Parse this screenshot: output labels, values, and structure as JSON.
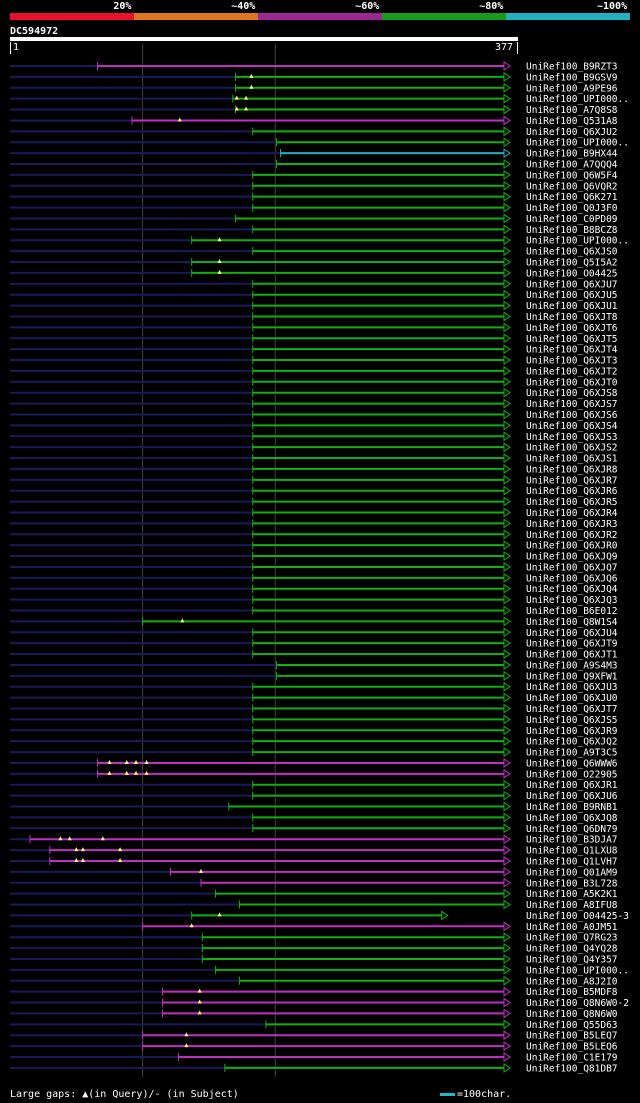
{
  "legend": {
    "items": [
      {
        "label": "20%",
        "color": "#e8102a"
      },
      {
        "label": "~40%",
        "color": "#e07420"
      },
      {
        "label": "~60%",
        "color": "#9a2890"
      },
      {
        "label": "~80%",
        "color": "#1a9a1a"
      },
      {
        "label": "~100%",
        "color": "#20b0c0"
      }
    ]
  },
  "query": {
    "title": "DC594972",
    "start_label": "1",
    "end_label": "377",
    "length": 377
  },
  "colors": {
    "background": "#000000",
    "query_line": "#1a1a5a",
    "identity_40_60": "#c030c0",
    "identity_60_80": "#10b010",
    "identity_80_100": "#20b0c0",
    "grid_line": "#404040",
    "gap_marker": "#ffff80"
  },
  "footer": {
    "gaps_label": "Large gaps: ▲(in Query)/- (in Subject)",
    "scale_label": "=100char."
  },
  "chart_data": {
    "type": "alignment_hits",
    "query_length": 377,
    "hits": [
      {
        "name": "UniRef100_B9RZT3",
        "start": 66,
        "end": 377,
        "color": "purple",
        "gaps": []
      },
      {
        "name": "UniRef100_B9GSV9",
        "start": 170,
        "end": 377,
        "color": "green",
        "gaps": [
          182
        ]
      },
      {
        "name": "UniRef100_A9PE96",
        "start": 170,
        "end": 377,
        "color": "green",
        "gaps": [
          182
        ]
      },
      {
        "name": "UniRef100_UPI000..",
        "start": 168,
        "end": 377,
        "color": "green",
        "gaps": [
          171,
          178
        ]
      },
      {
        "name": "UniRef100_A7Q8S8",
        "start": 170,
        "end": 377,
        "color": "green",
        "gaps": [
          171,
          178
        ]
      },
      {
        "name": "UniRef100_Q531A8",
        "start": 92,
        "end": 377,
        "color": "purple",
        "gaps": [
          128
        ]
      },
      {
        "name": "UniRef100_Q6XJU2",
        "start": 183,
        "end": 377,
        "color": "green",
        "gaps": []
      },
      {
        "name": "UniRef100_UPI000..",
        "start": 201,
        "end": 377,
        "color": "green",
        "gaps": []
      },
      {
        "name": "UniRef100_B9HX44",
        "start": 204,
        "end": 377,
        "color": "cyan",
        "gaps": []
      },
      {
        "name": "UniRef100_A7QQQ4",
        "start": 201,
        "end": 377,
        "color": "green",
        "gaps": []
      },
      {
        "name": "UniRef100_Q6W5F4",
        "start": 183,
        "end": 377,
        "color": "green",
        "gaps": []
      },
      {
        "name": "UniRef100_Q6VQR2",
        "start": 183,
        "end": 377,
        "color": "green",
        "gaps": []
      },
      {
        "name": "UniRef100_Q6K271",
        "start": 183,
        "end": 377,
        "color": "green",
        "gaps": []
      },
      {
        "name": "UniRef100_Q0J3F0",
        "start": 183,
        "end": 377,
        "color": "green",
        "gaps": []
      },
      {
        "name": "UniRef100_C0PD09",
        "start": 170,
        "end": 377,
        "color": "green",
        "gaps": []
      },
      {
        "name": "UniRef100_B8BCZ8",
        "start": 183,
        "end": 377,
        "color": "green",
        "gaps": []
      },
      {
        "name": "UniRef100_UPI000..",
        "start": 137,
        "end": 377,
        "color": "green",
        "gaps": [
          158
        ]
      },
      {
        "name": "UniRef100_Q6XJS0",
        "start": 183,
        "end": 377,
        "color": "green",
        "gaps": []
      },
      {
        "name": "UniRef100_Q5I5A2",
        "start": 137,
        "end": 377,
        "color": "green",
        "gaps": [
          158
        ]
      },
      {
        "name": "UniRef100_O04425",
        "start": 137,
        "end": 377,
        "color": "green",
        "gaps": [
          158
        ]
      },
      {
        "name": "UniRef100_Q6XJU7",
        "start": 183,
        "end": 377,
        "color": "green",
        "gaps": []
      },
      {
        "name": "UniRef100_Q6XJU5",
        "start": 183,
        "end": 377,
        "color": "green",
        "gaps": []
      },
      {
        "name": "UniRef100_Q6XJU1",
        "start": 183,
        "end": 377,
        "color": "green",
        "gaps": []
      },
      {
        "name": "UniRef100_Q6XJT8",
        "start": 183,
        "end": 377,
        "color": "green",
        "gaps": []
      },
      {
        "name": "UniRef100_Q6XJT6",
        "start": 183,
        "end": 377,
        "color": "green",
        "gaps": []
      },
      {
        "name": "UniRef100_Q6XJT5",
        "start": 183,
        "end": 377,
        "color": "green",
        "gaps": []
      },
      {
        "name": "UniRef100_Q6XJT4",
        "start": 183,
        "end": 377,
        "color": "green",
        "gaps": []
      },
      {
        "name": "UniRef100_Q6XJT3",
        "start": 183,
        "end": 377,
        "color": "green",
        "gaps": []
      },
      {
        "name": "UniRef100_Q6XJT2",
        "start": 183,
        "end": 377,
        "color": "green",
        "gaps": []
      },
      {
        "name": "UniRef100_Q6XJT0",
        "start": 183,
        "end": 377,
        "color": "green",
        "gaps": []
      },
      {
        "name": "UniRef100_Q6XJS8",
        "start": 183,
        "end": 377,
        "color": "green",
        "gaps": []
      },
      {
        "name": "UniRef100_Q6XJS7",
        "start": 183,
        "end": 377,
        "color": "green",
        "gaps": []
      },
      {
        "name": "UniRef100_Q6XJS6",
        "start": 183,
        "end": 377,
        "color": "green",
        "gaps": []
      },
      {
        "name": "UniRef100_Q6XJS4",
        "start": 183,
        "end": 377,
        "color": "green",
        "gaps": []
      },
      {
        "name": "UniRef100_Q6XJS3",
        "start": 183,
        "end": 377,
        "color": "green",
        "gaps": []
      },
      {
        "name": "UniRef100_Q6XJS2",
        "start": 183,
        "end": 377,
        "color": "green",
        "gaps": []
      },
      {
        "name": "UniRef100_Q6XJS1",
        "start": 183,
        "end": 377,
        "color": "green",
        "gaps": []
      },
      {
        "name": "UniRef100_Q6XJR8",
        "start": 183,
        "end": 377,
        "color": "green",
        "gaps": []
      },
      {
        "name": "UniRef100_Q6XJR7",
        "start": 183,
        "end": 377,
        "color": "green",
        "gaps": []
      },
      {
        "name": "UniRef100_Q6XJR6",
        "start": 183,
        "end": 377,
        "color": "green",
        "gaps": []
      },
      {
        "name": "UniRef100_Q6XJR5",
        "start": 183,
        "end": 377,
        "color": "green",
        "gaps": []
      },
      {
        "name": "UniRef100_Q6XJR4",
        "start": 183,
        "end": 377,
        "color": "green",
        "gaps": []
      },
      {
        "name": "UniRef100_Q6XJR3",
        "start": 183,
        "end": 377,
        "color": "green",
        "gaps": []
      },
      {
        "name": "UniRef100_Q6XJR2",
        "start": 183,
        "end": 377,
        "color": "green",
        "gaps": []
      },
      {
        "name": "UniRef100_Q6XJR0",
        "start": 183,
        "end": 377,
        "color": "green",
        "gaps": []
      },
      {
        "name": "UniRef100_Q6XJQ9",
        "start": 183,
        "end": 377,
        "color": "green",
        "gaps": []
      },
      {
        "name": "UniRef100_Q6XJQ7",
        "start": 183,
        "end": 377,
        "color": "green",
        "gaps": []
      },
      {
        "name": "UniRef100_Q6XJQ6",
        "start": 183,
        "end": 377,
        "color": "green",
        "gaps": []
      },
      {
        "name": "UniRef100_Q6XJQ4",
        "start": 183,
        "end": 377,
        "color": "green",
        "gaps": []
      },
      {
        "name": "UniRef100_Q6XJQ3",
        "start": 183,
        "end": 377,
        "color": "green",
        "gaps": []
      },
      {
        "name": "UniRef100_B6E012",
        "start": 183,
        "end": 377,
        "color": "green",
        "gaps": []
      },
      {
        "name": "UniRef100_Q8W1S4",
        "start": 100,
        "end": 377,
        "color": "green",
        "gaps": [
          130
        ]
      },
      {
        "name": "UniRef100_Q6XJU4",
        "start": 183,
        "end": 377,
        "color": "green",
        "gaps": []
      },
      {
        "name": "UniRef100_Q6XJT9",
        "start": 183,
        "end": 377,
        "color": "green",
        "gaps": []
      },
      {
        "name": "UniRef100_Q6XJT1",
        "start": 183,
        "end": 377,
        "color": "green",
        "gaps": []
      },
      {
        "name": "UniRef100_A9S4M3",
        "start": 201,
        "end": 377,
        "color": "green",
        "gaps": []
      },
      {
        "name": "UniRef100_Q9XFW1",
        "start": 201,
        "end": 377,
        "color": "green",
        "gaps": []
      },
      {
        "name": "UniRef100_Q6XJU3",
        "start": 183,
        "end": 377,
        "color": "green",
        "gaps": []
      },
      {
        "name": "UniRef100_Q6XJU0",
        "start": 183,
        "end": 377,
        "color": "green",
        "gaps": []
      },
      {
        "name": "UniRef100_Q6XJT7",
        "start": 183,
        "end": 377,
        "color": "green",
        "gaps": []
      },
      {
        "name": "UniRef100_Q6XJS5",
        "start": 183,
        "end": 377,
        "color": "green",
        "gaps": []
      },
      {
        "name": "UniRef100_Q6XJR9",
        "start": 183,
        "end": 377,
        "color": "green",
        "gaps": []
      },
      {
        "name": "UniRef100_Q6XJQ2",
        "start": 183,
        "end": 377,
        "color": "green",
        "gaps": []
      },
      {
        "name": "UniRef100_A9T3C5",
        "start": 183,
        "end": 377,
        "color": "green",
        "gaps": []
      },
      {
        "name": "UniRef100_Q6WWW6",
        "start": 66,
        "end": 377,
        "color": "purple",
        "gaps": [
          75,
          88,
          95,
          103
        ]
      },
      {
        "name": "UniRef100_O22905",
        "start": 66,
        "end": 377,
        "color": "purple",
        "gaps": [
          75,
          88,
          95,
          103
        ]
      },
      {
        "name": "UniRef100_Q6XJR1",
        "start": 183,
        "end": 377,
        "color": "green",
        "gaps": []
      },
      {
        "name": "UniRef100_Q6XJU6",
        "start": 183,
        "end": 377,
        "color": "green",
        "gaps": []
      },
      {
        "name": "UniRef100_B9RNB1",
        "start": 165,
        "end": 377,
        "color": "green",
        "gaps": []
      },
      {
        "name": "UniRef100_Q6XJQ8",
        "start": 183,
        "end": 377,
        "color": "green",
        "gaps": []
      },
      {
        "name": "UniRef100_Q6DN79",
        "start": 183,
        "end": 377,
        "color": "green",
        "gaps": []
      },
      {
        "name": "UniRef100_B3DJA7",
        "start": 15,
        "end": 377,
        "color": "purple",
        "gaps": [
          38,
          45,
          70
        ]
      },
      {
        "name": "UniRef100_Q1LXU8",
        "start": 30,
        "end": 377,
        "color": "purple",
        "gaps": [
          50,
          55,
          83
        ]
      },
      {
        "name": "UniRef100_Q1LVH7",
        "start": 30,
        "end": 377,
        "color": "purple",
        "gaps": [
          50,
          55,
          83
        ]
      },
      {
        "name": "UniRef100_Q01AM9",
        "start": 121,
        "end": 377,
        "color": "purple",
        "gaps": [
          144
        ]
      },
      {
        "name": "UniRef100_B3L728",
        "start": 144,
        "end": 377,
        "color": "purple",
        "gaps": []
      },
      {
        "name": "UniRef100_A5K2K1",
        "start": 155,
        "end": 377,
        "color": "green",
        "gaps": []
      },
      {
        "name": "UniRef100_A8IFU8",
        "start": 173,
        "end": 377,
        "color": "green",
        "gaps": []
      },
      {
        "name": "UniRef100_O04425-3",
        "start": 137,
        "end": 330,
        "color": "green",
        "gaps": [
          158
        ]
      },
      {
        "name": "UniRef100_A0JM51",
        "start": 100,
        "end": 377,
        "color": "purple",
        "gaps": [
          137
        ]
      },
      {
        "name": "UniRef100_Q7RG23",
        "start": 145,
        "end": 377,
        "color": "green",
        "gaps": []
      },
      {
        "name": "UniRef100_Q4YQ28",
        "start": 145,
        "end": 377,
        "color": "green",
        "gaps": []
      },
      {
        "name": "UniRef100_Q4Y357",
        "start": 145,
        "end": 377,
        "color": "green",
        "gaps": []
      },
      {
        "name": "UniRef100_UPI000..",
        "start": 155,
        "end": 377,
        "color": "green",
        "gaps": []
      },
      {
        "name": "UniRef100_A8J2I0",
        "start": 173,
        "end": 377,
        "color": "green",
        "gaps": []
      },
      {
        "name": "UniRef100_B5MDF8",
        "start": 115,
        "end": 377,
        "color": "purple",
        "gaps": [
          143
        ]
      },
      {
        "name": "UniRef100_Q8N6W0-2",
        "start": 115,
        "end": 377,
        "color": "purple",
        "gaps": [
          143
        ]
      },
      {
        "name": "UniRef100_Q8N6W0",
        "start": 115,
        "end": 377,
        "color": "purple",
        "gaps": [
          143
        ]
      },
      {
        "name": "UniRef100_Q55D63",
        "start": 193,
        "end": 377,
        "color": "green",
        "gaps": []
      },
      {
        "name": "UniRef100_B5LEQ7",
        "start": 100,
        "end": 377,
        "color": "purple",
        "gaps": [
          133
        ]
      },
      {
        "name": "UniRef100_B5LEQ6",
        "start": 100,
        "end": 377,
        "color": "purple",
        "gaps": [
          133
        ]
      },
      {
        "name": "UniRef100_C1E179",
        "start": 127,
        "end": 377,
        "color": "purple",
        "gaps": []
      },
      {
        "name": "UniRef100_Q81DB7",
        "start": 162,
        "end": 377,
        "color": "green",
        "gaps": []
      }
    ]
  }
}
